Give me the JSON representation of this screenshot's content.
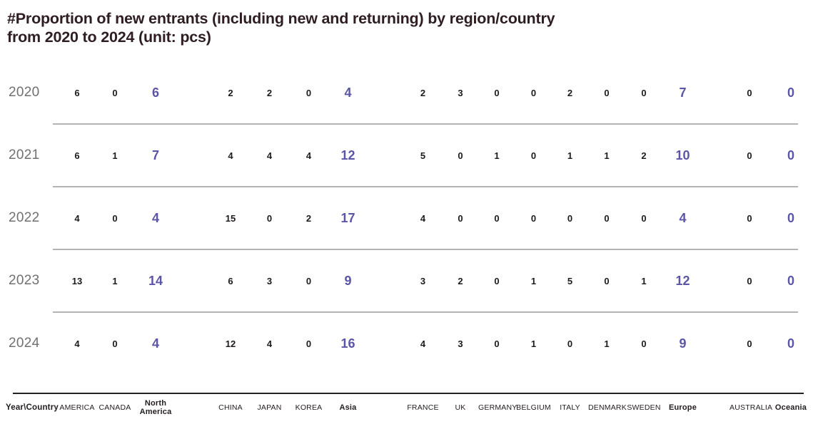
{
  "title": {
    "line1": "#Proportion of new entrants (including new and returning) by region/country",
    "line2": "from 2020 to 2024 (unit: pcs)"
  },
  "colors": {
    "title": "#2e1d21",
    "year_label": "#707070",
    "value": "#1e1a19",
    "total_value": "#5b55a8",
    "row_separator": "#b4b4b4",
    "footer_line": "#261f20"
  },
  "chart_data": {
    "type": "table",
    "title": "#Proportion of new entrants (including new and returning) by region/country from 2020 to 2024 (unit: pcs)",
    "unit": "pcs",
    "corner_label": "Year\\Country",
    "columns": [
      {
        "label": "AMERICA",
        "bold": false,
        "total": false,
        "gap_after": false
      },
      {
        "label": "CANADA",
        "bold": false,
        "total": false,
        "gap_after": false
      },
      {
        "label": "North America",
        "bold": true,
        "total": true,
        "gap_after": true
      },
      {
        "label": "CHINA",
        "bold": false,
        "total": false,
        "gap_after": false
      },
      {
        "label": "JAPAN",
        "bold": false,
        "total": false,
        "gap_after": false
      },
      {
        "label": "KOREA",
        "bold": false,
        "total": false,
        "gap_after": false
      },
      {
        "label": "Asia",
        "bold": true,
        "total": true,
        "gap_after": true
      },
      {
        "label": "FRANCE",
        "bold": false,
        "total": false,
        "gap_after": false
      },
      {
        "label": "UK",
        "bold": false,
        "total": false,
        "gap_after": false
      },
      {
        "label": "GERMANY",
        "bold": false,
        "total": false,
        "gap_after": false
      },
      {
        "label": "BELGIUM",
        "bold": false,
        "total": false,
        "gap_after": false
      },
      {
        "label": "ITALY",
        "bold": false,
        "total": false,
        "gap_after": false
      },
      {
        "label": "DENMARK",
        "bold": false,
        "total": false,
        "gap_after": false
      },
      {
        "label": "SWEDEN",
        "bold": false,
        "total": false,
        "gap_after": false
      },
      {
        "label": "Europe",
        "bold": true,
        "total": true,
        "gap_after": true
      },
      {
        "label": "AUSTRALIA",
        "bold": false,
        "total": false,
        "gap_after": false
      },
      {
        "label": "Oceania",
        "bold": true,
        "total": true,
        "gap_after": false
      }
    ],
    "rows": [
      {
        "year": "2020",
        "values": [
          6,
          0,
          6,
          2,
          2,
          0,
          4,
          2,
          3,
          0,
          0,
          2,
          0,
          0,
          7,
          0,
          0
        ]
      },
      {
        "year": "2021",
        "values": [
          6,
          1,
          7,
          4,
          4,
          4,
          12,
          5,
          0,
          1,
          0,
          1,
          1,
          2,
          10,
          0,
          0
        ]
      },
      {
        "year": "2022",
        "values": [
          4,
          0,
          4,
          15,
          0,
          2,
          17,
          4,
          0,
          0,
          0,
          0,
          0,
          0,
          4,
          0,
          0
        ]
      },
      {
        "year": "2023",
        "values": [
          13,
          1,
          14,
          6,
          3,
          0,
          9,
          3,
          2,
          0,
          1,
          5,
          0,
          1,
          12,
          0,
          0
        ]
      },
      {
        "year": "2024",
        "values": [
          4,
          0,
          4,
          12,
          4,
          0,
          16,
          4,
          3,
          0,
          1,
          0,
          1,
          0,
          9,
          0,
          0
        ]
      }
    ]
  }
}
